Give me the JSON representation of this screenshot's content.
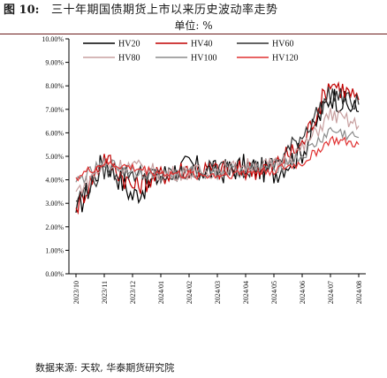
{
  "figure": {
    "number_label": "图 10:",
    "title": "三十年期国债期货上市以来历史波动率走势",
    "unit": "单位: %",
    "source": "数据来源: 天软, 华泰期货研究院"
  },
  "chart_data": {
    "type": "line",
    "title": "三十年期国债期货上市以来历史波动率走势",
    "xlabel": "",
    "ylabel": "",
    "ylim": [
      0,
      10
    ],
    "yticks": [
      "0.00%",
      "1.00%",
      "2.00%",
      "3.00%",
      "4.00%",
      "5.00%",
      "6.00%",
      "7.00%",
      "8.00%",
      "9.00%",
      "10.00%"
    ],
    "xticks": [
      "2023/10",
      "2023/11",
      "2023/12",
      "2024/01",
      "2024/02",
      "2024/03",
      "2024/04",
      "2024/05",
      "2024/06",
      "2024/07",
      "2024/08"
    ],
    "x": [
      "2023/10",
      "2023/11",
      "2023/12",
      "2024/01",
      "2024/02",
      "2024/03",
      "2024/04",
      "2024/05",
      "2024/06",
      "2024/07",
      "2024/08"
    ],
    "grid": false,
    "legend_position": "top",
    "series": [
      {
        "name": "HV20",
        "color": "#000000",
        "values": [
          2.6,
          4.9,
          3.3,
          4.2,
          4.6,
          4.3,
          4.6,
          4.3,
          5.2,
          7.6,
          6.9
        ]
      },
      {
        "name": "HV40",
        "color": "#c00000",
        "values": [
          2.8,
          5.0,
          3.7,
          4.2,
          4.5,
          4.4,
          4.4,
          4.6,
          5.5,
          8.2,
          7.4
        ]
      },
      {
        "name": "HV60",
        "color": "#303030",
        "values": [
          3.1,
          4.4,
          4.3,
          4.1,
          4.3,
          4.5,
          4.5,
          4.6,
          5.9,
          7.7,
          7.2
        ]
      },
      {
        "name": "HV80",
        "color": "#c8a0a0",
        "values": [
          3.5,
          4.6,
          4.6,
          4.3,
          4.3,
          4.4,
          4.6,
          4.6,
          5.3,
          6.8,
          6.3
        ]
      },
      {
        "name": "HV100",
        "color": "#8c8c8c",
        "values": [
          3.9,
          4.7,
          4.4,
          4.2,
          4.3,
          4.3,
          4.5,
          4.5,
          5.0,
          6.1,
          5.8
        ]
      },
      {
        "name": "HV120",
        "color": "#e03030",
        "values": [
          4.1,
          4.7,
          4.5,
          4.3,
          4.2,
          4.2,
          4.3,
          4.4,
          4.7,
          5.7,
          5.5
        ]
      }
    ]
  }
}
